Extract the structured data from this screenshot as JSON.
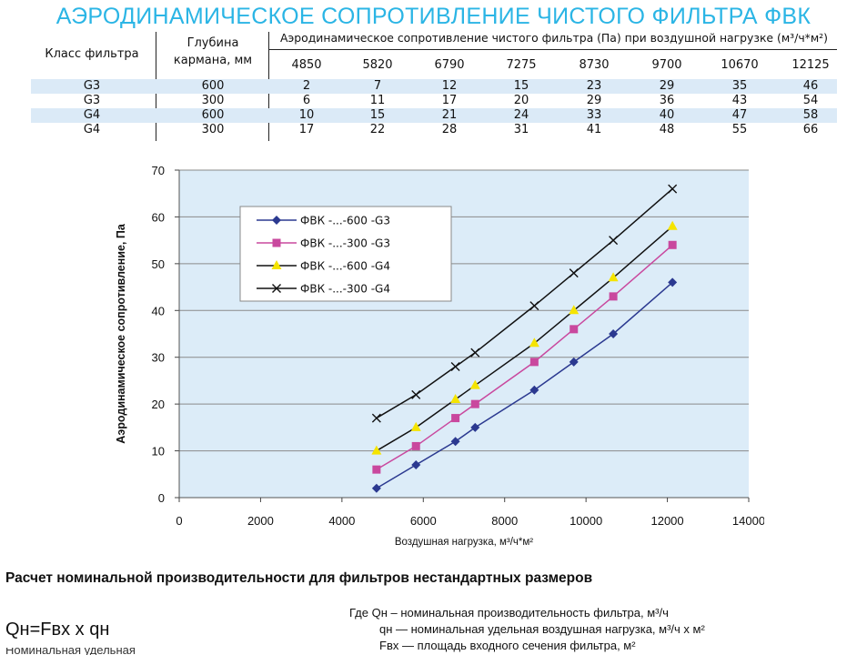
{
  "page": {
    "title": "АЭРОДИНАМИЧЕСКОЕ СОПРОТИВЛЕНИЕ ЧИСТОГО ФИЛЬТРА ФВК"
  },
  "table": {
    "header_class": "Класс фильтра",
    "header_depth_line1": "Глубина",
    "header_depth_line2": "кармана, мм",
    "header_group": "Аэродинамическое сопротивление чистого фильтра (Па) при воздушной нагрузке (м³/ч*м²)",
    "loads": [
      "4850",
      "5820",
      "6790",
      "7275",
      "8730",
      "9700",
      "10670",
      "12125"
    ],
    "rows": [
      {
        "cls": "G3",
        "depth": "600",
        "vals": [
          "2",
          "7",
          "12",
          "15",
          "23",
          "29",
          "35",
          "46"
        ]
      },
      {
        "cls": "G3",
        "depth": "300",
        "vals": [
          "6",
          "11",
          "17",
          "20",
          "29",
          "36",
          "43",
          "54"
        ]
      },
      {
        "cls": "G4",
        "depth": "600",
        "vals": [
          "10",
          "15",
          "21",
          "24",
          "33",
          "40",
          "47",
          "58"
        ]
      },
      {
        "cls": "G4",
        "depth": "300",
        "vals": [
          "17",
          "22",
          "28",
          "31",
          "41",
          "48",
          "55",
          "66"
        ]
      }
    ]
  },
  "chart_data": {
    "type": "line",
    "xlabel": "Воздушная нагрузка, м³/ч*м²",
    "ylabel": "Аэродинамическое сопротивление, Па",
    "xlim": [
      0,
      14000
    ],
    "ylim": [
      0,
      70
    ],
    "xticks": [
      "0",
      "2000",
      "4000",
      "6000",
      "8000",
      "10000",
      "12000",
      "14000"
    ],
    "yticks": [
      "0",
      "10",
      "20",
      "30",
      "40",
      "50",
      "60",
      "70"
    ],
    "grid": "horizontal",
    "legend_position": "upper-left inside",
    "x": [
      4850,
      5820,
      6790,
      7275,
      8730,
      9700,
      10670,
      12125
    ],
    "series": [
      {
        "name": "ФВК -...-600 -G3",
        "values": [
          2,
          7,
          12,
          15,
          23,
          29,
          35,
          46
        ],
        "color": "#2b3990",
        "marker": "diamond"
      },
      {
        "name": "ФВК -...-300 -G3",
        "values": [
          6,
          11,
          17,
          20,
          29,
          36,
          43,
          54
        ],
        "color": "#c9489e",
        "marker": "square"
      },
      {
        "name": "ФВК -...-600 -G4",
        "values": [
          10,
          15,
          21,
          24,
          33,
          40,
          47,
          58
        ],
        "color": "#f5e400",
        "marker": "triangle",
        "line_color": "#111111"
      },
      {
        "name": "ФВК -...-300 -G4",
        "values": [
          17,
          22,
          28,
          31,
          41,
          48,
          55,
          66
        ],
        "color": "#111111",
        "marker": "cross"
      }
    ],
    "plot_background": "#dcecf8"
  },
  "section": {
    "heading": "Расчет номинальной производительности для фильтров нестандартных размеров",
    "formula": "Qн=Fвх x qн",
    "where_1": "Где Qн – номинальная производительность фильтра, м³/ч",
    "where_2": "qн — номинальная удельная воздушная нагрузка, м³/ч x м²",
    "where_3": "Fвх — площадь входного сечения фильтра, м²",
    "cut_text": "Номинальная удельная воздушная..."
  }
}
